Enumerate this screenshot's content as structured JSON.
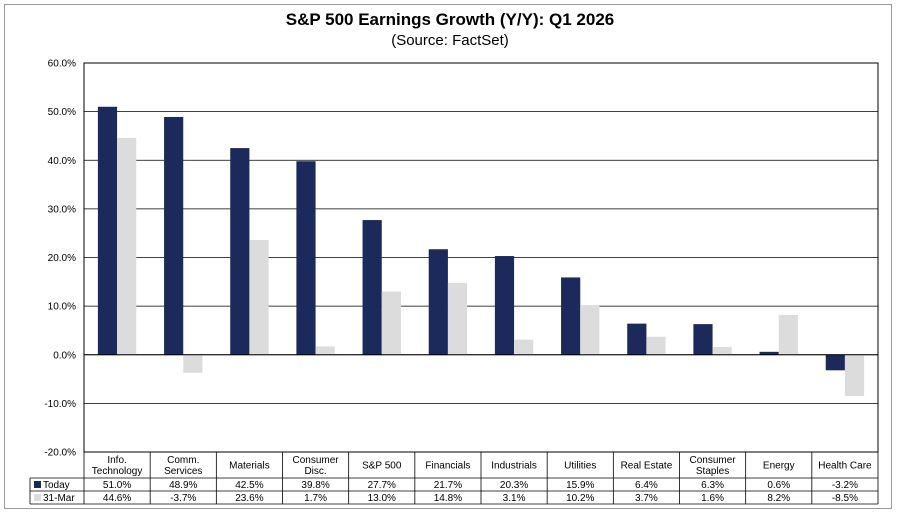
{
  "chart_data": {
    "type": "bar",
    "title": "S&P 500 Earnings Growth (Y/Y): Q1 2026",
    "subtitle": "(Source: FactSet)",
    "categories": [
      [
        "Info.",
        "Technology"
      ],
      [
        "Comm.",
        "Services"
      ],
      [
        "Materials"
      ],
      [
        "Consumer",
        "Disc."
      ],
      [
        "S&P 500"
      ],
      [
        "Financials"
      ],
      [
        "Industrials"
      ],
      [
        "Utilities"
      ],
      [
        "Real Estate"
      ],
      [
        "Consumer",
        "Staples"
      ],
      [
        "Energy"
      ],
      [
        "Health Care"
      ]
    ],
    "series": [
      {
        "name": "Today",
        "color": "#1b2a5a",
        "values": [
          51.0,
          48.9,
          42.5,
          39.8,
          27.7,
          21.7,
          20.3,
          15.9,
          6.4,
          6.3,
          0.6,
          -3.2
        ],
        "labels": [
          "51.0%",
          "48.9%",
          "42.5%",
          "39.8%",
          "27.7%",
          "21.7%",
          "20.3%",
          "15.9%",
          "6.4%",
          "6.3%",
          "0.6%",
          "-3.2%"
        ]
      },
      {
        "name": "31-Mar",
        "color": "#dcdcdc",
        "values": [
          44.6,
          -3.7,
          23.6,
          1.7,
          13.0,
          14.8,
          3.1,
          10.2,
          3.7,
          1.6,
          8.2,
          -8.5
        ],
        "labels": [
          "44.6%",
          "-3.7%",
          "23.6%",
          "1.7%",
          "13.0%",
          "14.8%",
          "3.1%",
          "10.2%",
          "3.7%",
          "1.6%",
          "8.2%",
          "-8.5%"
        ]
      }
    ],
    "ylim": [
      -20,
      60
    ],
    "yticks": [
      60,
      50,
      40,
      30,
      20,
      10,
      0,
      -10,
      -20
    ],
    "ytick_labels": [
      "60.0%",
      "50.0%",
      "40.0%",
      "30.0%",
      "20.0%",
      "10.0%",
      "0.0%",
      "-10.0%",
      "-20.0%"
    ],
    "grid": true,
    "legend": "data-table-left"
  }
}
